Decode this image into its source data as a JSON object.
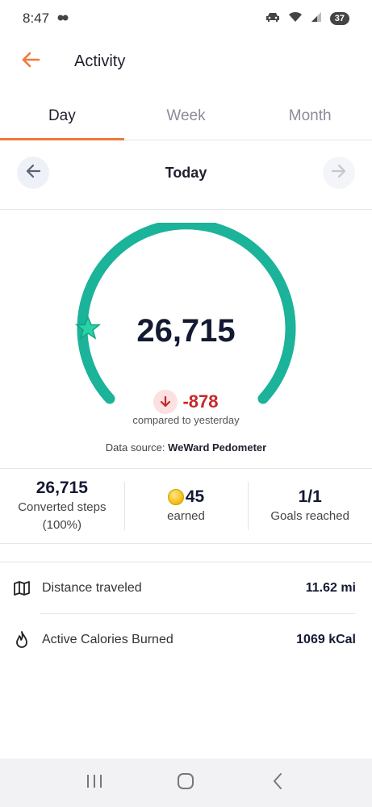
{
  "status": {
    "time": "8:47",
    "battery": "37"
  },
  "header": {
    "title": "Activity"
  },
  "tabs": [
    {
      "label": "Day",
      "active": true
    },
    {
      "label": "Week",
      "active": false
    },
    {
      "label": "Month",
      "active": false
    }
  ],
  "day_nav": {
    "label": "Today"
  },
  "summary": {
    "steps": "26,715",
    "delta": "-878",
    "compare_text": "compared to yesterday",
    "source_prefix": "Data source: ",
    "source_name": "WeWard Pedometer",
    "gauge_progress": 1.0
  },
  "stats": {
    "converted_value": "26,715",
    "converted_label": "Converted steps",
    "converted_percent": "(100%)",
    "earned_value": "45",
    "earned_label": "earned",
    "goals_value": "1/1",
    "goals_label": "Goals reached"
  },
  "metrics": [
    {
      "label": "Distance traveled",
      "value": "11.62 mi",
      "icon": "map-icon"
    },
    {
      "label": "Active Calories Burned",
      "value": "1069 kCal",
      "icon": "flame-icon"
    }
  ],
  "colors": {
    "accent": "#f07a3a",
    "gauge": "#1bb39a",
    "negative": "#c62828"
  }
}
